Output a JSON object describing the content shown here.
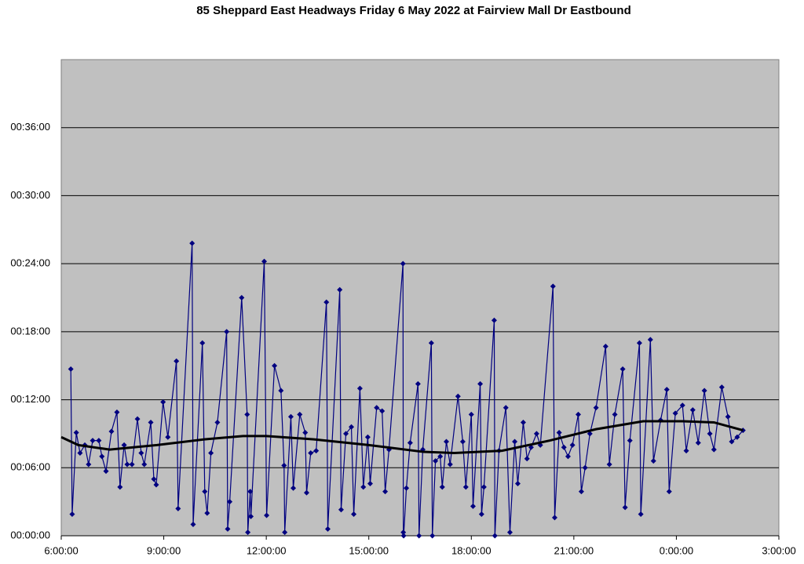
{
  "chart_data": {
    "type": "line",
    "title": "85 Sheppard East Headways Friday 6 May 2022 at Fairview Mall Dr Eastbound",
    "xlim": [
      6,
      27
    ],
    "xticks": [
      {
        "value": 6,
        "label": "6:00:00"
      },
      {
        "value": 9,
        "label": "9:00:00"
      },
      {
        "value": 12,
        "label": "12:00:00"
      },
      {
        "value": 15,
        "label": "15:00:00"
      },
      {
        "value": 18,
        "label": "18:00:00"
      },
      {
        "value": 21,
        "label": "21:00:00"
      },
      {
        "value": 24,
        "label": "0:00:00"
      },
      {
        "value": 27,
        "label": "3:00:00"
      }
    ],
    "ylim": [
      0,
      42
    ],
    "yticks": [
      {
        "value": 0,
        "label": "00:00:00"
      },
      {
        "value": 6,
        "label": "00:06:00"
      },
      {
        "value": 12,
        "label": "00:12:00"
      },
      {
        "value": 18,
        "label": "00:18:00"
      },
      {
        "value": 24,
        "label": "00:24:00"
      },
      {
        "value": 30,
        "label": "00:30:00"
      },
      {
        "value": 36,
        "label": "00:36:00"
      }
    ],
    "grid": true,
    "series": [
      {
        "color": "#000080",
        "markers": true,
        "x": [
          6.28,
          6.32,
          6.44,
          6.55,
          6.69,
          6.8,
          6.92,
          7.1,
          7.19,
          7.31,
          7.47,
          7.63,
          7.72,
          7.84,
          7.93,
          8.07,
          8.23,
          8.34,
          8.43,
          8.62,
          8.71,
          8.78,
          8.98,
          9.12,
          9.37,
          9.42,
          9.83,
          9.86,
          10.13,
          10.2,
          10.27,
          10.38,
          10.57,
          10.84,
          10.87,
          10.93,
          11.28,
          11.44,
          11.46,
          11.53,
          11.55,
          11.94,
          12.01,
          12.24,
          12.43,
          12.52,
          12.54,
          12.72,
          12.79,
          12.98,
          13.14,
          13.18,
          13.3,
          13.46,
          13.76,
          13.8,
          14.15,
          14.19,
          14.33,
          14.49,
          14.56,
          14.74,
          14.84,
          14.97,
          15.04,
          15.23,
          15.39,
          15.48,
          15.59,
          16.0,
          16.01,
          16.02,
          16.1,
          16.21,
          16.44,
          16.47,
          16.58,
          16.83,
          16.86,
          16.95,
          17.09,
          17.15,
          17.27,
          17.38,
          17.61,
          17.75,
          17.84,
          18.0,
          18.05,
          18.26,
          18.3,
          18.37,
          18.67,
          18.69,
          18.81,
          19.01,
          19.13,
          19.27,
          19.36,
          19.52,
          19.63,
          19.75,
          19.91,
          20.02,
          20.39,
          20.44,
          20.57,
          20.71,
          20.83,
          20.96,
          21.13,
          21.22,
          21.33,
          21.47,
          21.65,
          21.93,
          22.04,
          22.2,
          22.43,
          22.5,
          22.64,
          22.92,
          22.96,
          23.24,
          23.33,
          23.54,
          23.72,
          23.79,
          23.97,
          24.18,
          24.29,
          24.48,
          24.64,
          24.82,
          24.98,
          25.1,
          25.33,
          25.51,
          25.62,
          25.78,
          25.95
        ],
        "values": [
          14.7,
          1.9,
          9.1,
          7.3,
          8.0,
          6.3,
          8.4,
          8.4,
          7.0,
          5.7,
          9.2,
          10.9,
          4.3,
          8.0,
          6.3,
          6.3,
          10.3,
          7.3,
          6.3,
          10.0,
          5.0,
          4.5,
          11.8,
          8.7,
          15.4,
          2.4,
          25.8,
          1.0,
          17.0,
          3.9,
          2.0,
          7.3,
          10.0,
          18.0,
          0.6,
          3.0,
          21.0,
          10.7,
          0.3,
          3.9,
          1.7,
          24.2,
          1.8,
          15.0,
          12.8,
          6.2,
          0.3,
          10.5,
          4.2,
          10.7,
          9.1,
          3.8,
          7.3,
          7.5,
          20.6,
          0.6,
          21.7,
          2.3,
          9.0,
          9.6,
          1.9,
          13.0,
          4.3,
          8.7,
          4.6,
          11.3,
          11.0,
          3.9,
          7.6,
          24.0,
          0.3,
          0,
          4.2,
          8.2,
          13.4,
          0,
          7.6,
          17.0,
          0,
          6.6,
          7.0,
          4.3,
          8.3,
          6.3,
          12.3,
          8.3,
          4.3,
          10.7,
          2.6,
          13.4,
          1.9,
          4.3,
          19.0,
          0,
          7.5,
          11.3,
          0.3,
          8.3,
          4.6,
          10.0,
          6.8,
          7.8,
          9.0,
          8.0,
          22.0,
          1.6,
          9.1,
          7.8,
          7.0,
          8.0,
          10.7,
          3.9,
          6.0,
          9.0,
          11.3,
          16.7,
          6.3,
          10.7,
          14.7,
          2.5,
          8.4,
          17.0,
          1.9,
          17.3,
          6.6,
          10.2,
          12.9,
          3.9,
          10.8,
          11.5,
          7.5,
          11.1,
          8.2,
          12.8,
          9.0,
          7.6,
          13.1,
          10.5,
          8.3,
          8.7,
          9.3
        ]
      },
      {
        "color": "#000000",
        "markers": false,
        "x": [
          6.0,
          6.5,
          7.42,
          8.8,
          10.18,
          11.32,
          12.0,
          13.4,
          15.0,
          16.6,
          17.5,
          18.9,
          20.3,
          21.65,
          23.03,
          24.18,
          25.1,
          25.95
        ],
        "values": [
          8.7,
          8.0,
          7.6,
          8.0,
          8.5,
          8.8,
          8.8,
          8.5,
          8.0,
          7.4,
          7.3,
          7.5,
          8.4,
          9.4,
          10.1,
          10.1,
          10.0,
          9.3
        ]
      }
    ]
  }
}
